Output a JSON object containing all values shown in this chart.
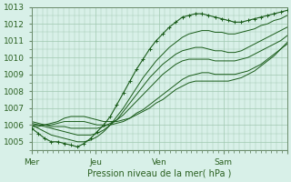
{
  "title": "",
  "xlabel": "Pression niveau de la mer( hPa )",
  "ylabel": "",
  "xlim": [
    0,
    96
  ],
  "ylim": [
    1004.5,
    1013
  ],
  "yticks": [
    1005,
    1006,
    1007,
    1008,
    1009,
    1010,
    1011,
    1012,
    1013
  ],
  "day_tick_positions": [
    0,
    24,
    48,
    72,
    96
  ],
  "day_tick_labels": [
    "Mer",
    "Jeu",
    "Ven",
    "Sam",
    ""
  ],
  "background_color": "#d8f0e8",
  "grid_color": "#a0c8b0",
  "line_color": "#1a5c1a",
  "marker_color": "#1a5c1a",
  "series": [
    [
      1005.8,
      1005.5,
      1005.2,
      1005.0,
      1005.0,
      1004.9,
      1004.8,
      1004.7,
      1004.9,
      1005.2,
      1005.6,
      1006.0,
      1006.5,
      1007.2,
      1007.9,
      1008.6,
      1009.3,
      1009.9,
      1010.5,
      1011.0,
      1011.4,
      1011.8,
      1012.1,
      1012.4,
      1012.5,
      1012.6,
      1012.6,
      1012.5,
      1012.4,
      1012.3,
      1012.2,
      1012.1,
      1012.1,
      1012.2,
      1012.3,
      1012.4,
      1012.5,
      1012.6,
      1012.7,
      1012.8
    ],
    [
      1006.0,
      1005.8,
      1005.6,
      1005.4,
      1005.3,
      1005.2,
      1005.1,
      1005.0,
      1005.0,
      1005.1,
      1005.3,
      1005.6,
      1006.0,
      1006.5,
      1007.0,
      1007.6,
      1008.2,
      1008.8,
      1009.3,
      1009.8,
      1010.2,
      1010.6,
      1010.9,
      1011.2,
      1011.4,
      1011.5,
      1011.6,
      1011.6,
      1011.5,
      1011.5,
      1011.4,
      1011.4,
      1011.5,
      1011.6,
      1011.7,
      1011.9,
      1012.0,
      1012.2,
      1012.3,
      1012.5
    ],
    [
      1006.1,
      1006.0,
      1005.9,
      1005.8,
      1005.7,
      1005.6,
      1005.5,
      1005.4,
      1005.4,
      1005.4,
      1005.5,
      1005.7,
      1006.0,
      1006.3,
      1006.8,
      1007.3,
      1007.8,
      1008.3,
      1008.8,
      1009.2,
      1009.6,
      1009.9,
      1010.2,
      1010.4,
      1010.5,
      1010.6,
      1010.6,
      1010.5,
      1010.4,
      1010.4,
      1010.3,
      1010.3,
      1010.4,
      1010.6,
      1010.8,
      1011.0,
      1011.2,
      1011.4,
      1011.6,
      1011.8
    ],
    [
      1006.2,
      1006.1,
      1006.0,
      1005.9,
      1005.9,
      1005.9,
      1005.8,
      1005.8,
      1005.8,
      1005.8,
      1005.8,
      1005.9,
      1006.1,
      1006.3,
      1006.6,
      1007.0,
      1007.4,
      1007.8,
      1008.2,
      1008.6,
      1009.0,
      1009.3,
      1009.6,
      1009.8,
      1009.9,
      1009.9,
      1009.9,
      1009.9,
      1009.8,
      1009.8,
      1009.8,
      1009.8,
      1009.9,
      1010.0,
      1010.2,
      1010.4,
      1010.6,
      1010.8,
      1011.0,
      1011.3
    ],
    [
      1006.0,
      1006.0,
      1006.0,
      1006.0,
      1006.1,
      1006.2,
      1006.2,
      1006.2,
      1006.2,
      1006.1,
      1006.0,
      1006.0,
      1006.0,
      1006.1,
      1006.2,
      1006.4,
      1006.7,
      1006.9,
      1007.2,
      1007.5,
      1007.8,
      1008.1,
      1008.4,
      1008.7,
      1008.9,
      1009.0,
      1009.1,
      1009.1,
      1009.0,
      1009.0,
      1009.0,
      1009.0,
      1009.1,
      1009.2,
      1009.4,
      1009.6,
      1009.9,
      1010.2,
      1010.5,
      1010.9
    ],
    [
      1005.9,
      1005.9,
      1006.0,
      1006.1,
      1006.2,
      1006.4,
      1006.5,
      1006.5,
      1006.5,
      1006.4,
      1006.3,
      1006.2,
      1006.2,
      1006.2,
      1006.3,
      1006.4,
      1006.6,
      1006.8,
      1007.0,
      1007.3,
      1007.5,
      1007.8,
      1008.1,
      1008.3,
      1008.5,
      1008.6,
      1008.6,
      1008.6,
      1008.6,
      1008.6,
      1008.6,
      1008.7,
      1008.8,
      1009.0,
      1009.2,
      1009.5,
      1009.8,
      1010.1,
      1010.5,
      1010.8
    ]
  ]
}
